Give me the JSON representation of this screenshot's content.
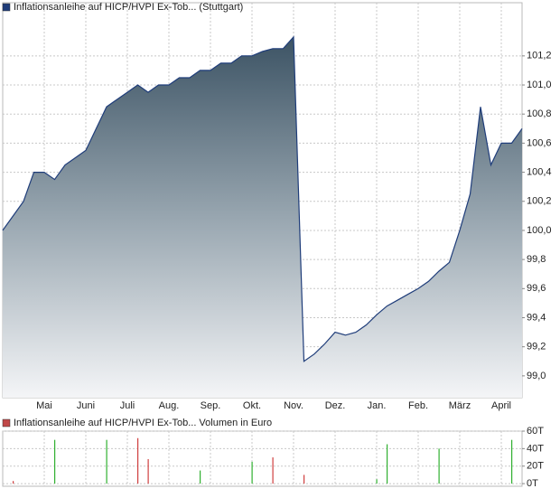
{
  "chart_data": [
    {
      "type": "area",
      "categories": [
        null,
        null,
        null,
        null,
        "Mai",
        null,
        null,
        null,
        "Juni",
        null,
        null,
        null,
        "Juli",
        null,
        null,
        null,
        "Aug.",
        null,
        null,
        null,
        "Sep.",
        null,
        null,
        null,
        "Okt.",
        null,
        null,
        null,
        "Nov.",
        null,
        null,
        null,
        "Dez.",
        null,
        null,
        null,
        "Jan.",
        null,
        null,
        null,
        "Feb.",
        null,
        null,
        null,
        "März",
        null,
        null,
        null,
        "April",
        null,
        null
      ],
      "series": [
        {
          "name": "Inflationsanleihe auf HICP/HVPI Ex-Tob... (Stuttgart)",
          "color": "#1f3d7a",
          "values": [
            100.0,
            100.1,
            100.2,
            100.4,
            100.4,
            100.35,
            100.45,
            100.5,
            100.55,
            100.7,
            100.85,
            100.9,
            100.95,
            101.0,
            100.95,
            101.0,
            101.0,
            101.05,
            101.05,
            101.1,
            101.1,
            101.15,
            101.15,
            101.2,
            101.2,
            101.23,
            101.25,
            101.25,
            101.33,
            99.1,
            99.15,
            99.22,
            99.3,
            99.28,
            99.3,
            99.35,
            99.42,
            99.48,
            99.52,
            99.56,
            99.6,
            99.65,
            99.72,
            99.78,
            100.0,
            100.25,
            100.85,
            100.45,
            100.6,
            100.6,
            100.7
          ]
        }
      ],
      "ylim": [
        98.85,
        101.46
      ],
      "yticks": [
        {
          "value": 99.0,
          "label": "99,0"
        },
        {
          "value": 99.2,
          "label": "99,2"
        },
        {
          "value": 99.4,
          "label": "99,4"
        },
        {
          "value": 99.6,
          "label": "99,6"
        },
        {
          "value": 99.8,
          "label": "99,8"
        },
        {
          "value": 100.0,
          "label": "100,0"
        },
        {
          "value": 100.2,
          "label": "100,2"
        },
        {
          "value": 100.4,
          "label": "100,4"
        },
        {
          "value": 100.6,
          "label": "100,6"
        },
        {
          "value": 100.8,
          "label": "100,8"
        },
        {
          "value": 101.0,
          "label": "101,0"
        },
        {
          "value": 101.2,
          "label": "101,2"
        }
      ],
      "grid": true
    },
    {
      "type": "bar",
      "series": [
        {
          "name": "Inflationsanleihe auf HICP/HVPI Ex-Tob... Volumen in Euro",
          "color": "#c04848",
          "values": [
            null,
            3000,
            null,
            null,
            null,
            50000,
            null,
            null,
            null,
            null,
            50000,
            null,
            null,
            52000,
            28000,
            null,
            null,
            null,
            null,
            15000,
            null,
            null,
            null,
            null,
            25000,
            null,
            30000,
            null,
            null,
            10000,
            null,
            null,
            null,
            null,
            null,
            null,
            5000,
            45000,
            null,
            null,
            null,
            null,
            40000,
            null,
            null,
            null,
            null,
            null,
            null,
            50000,
            null
          ],
          "bar_colors": [
            null,
            "#d04040",
            null,
            null,
            null,
            "#30b030",
            null,
            null,
            null,
            null,
            "#30b030",
            null,
            null,
            "#d04040",
            "#d04040",
            null,
            null,
            null,
            null,
            "#30b030",
            null,
            null,
            null,
            null,
            "#30b030",
            null,
            "#d04040",
            null,
            null,
            "#d04040",
            null,
            null,
            null,
            null,
            null,
            null,
            "#30b030",
            "#30b030",
            null,
            null,
            null,
            null,
            "#30b030",
            null,
            null,
            null,
            null,
            null,
            null,
            "#30b030",
            null
          ]
        }
      ],
      "ylim": [
        -3000,
        60000
      ],
      "yticks": [
        {
          "value": 0,
          "label": "0T"
        },
        {
          "value": 20000,
          "label": "20T"
        },
        {
          "value": 40000,
          "label": "40T"
        },
        {
          "value": 60000,
          "label": "60T"
        }
      ],
      "grid": true
    }
  ]
}
